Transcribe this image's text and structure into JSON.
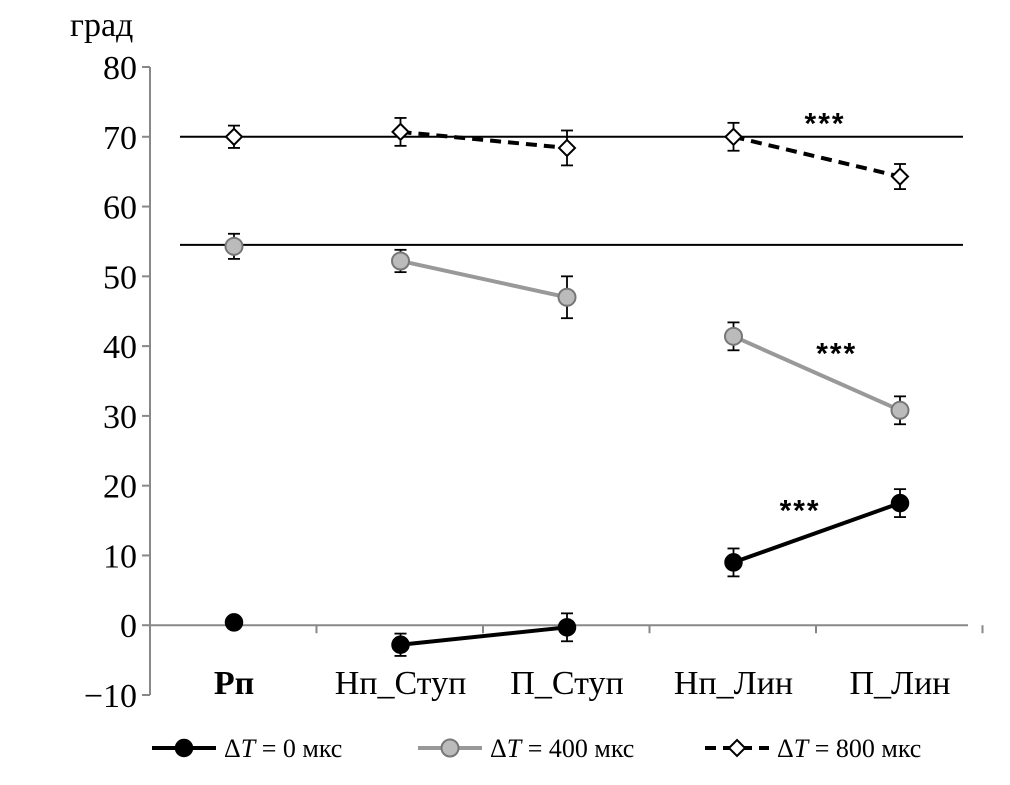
{
  "chart_data": {
    "type": "line",
    "ylabel": "град",
    "ylim": [
      -10,
      80
    ],
    "yticks": [
      -10,
      0,
      10,
      20,
      30,
      40,
      50,
      60,
      70,
      80
    ],
    "ytick_labels": [
      "−10",
      "0",
      "10",
      "20",
      "30",
      "40",
      "50",
      "60",
      "70",
      "80"
    ],
    "categories": [
      "Рп",
      "Нп_Ступ",
      "П_Ступ",
      "Нп_Лин",
      "П_Лин"
    ],
    "bold_categories": [
      0
    ],
    "reference_lines": [
      70,
      54.5
    ],
    "series": [
      {
        "name": "ΔT = 0 мкс",
        "legend_prefix": "Δ",
        "legend_var": "T",
        "legend_suffix": " = 0 мкс",
        "color": "#000000",
        "marker": "circle-filled",
        "marker_fill": "#000000",
        "line_style": "solid",
        "points": [
          {
            "x": 0,
            "y": 0.4,
            "err": 0
          },
          {
            "x": 1,
            "y": -2.8,
            "err": 1.6
          },
          {
            "x": 2,
            "y": -0.3,
            "err": 2.0
          },
          {
            "x": 3,
            "y": 9.0,
            "err": 2.0
          },
          {
            "x": 4,
            "y": 17.5,
            "err": 2.0
          }
        ],
        "segments": [
          [
            1,
            2
          ],
          [
            3,
            4
          ]
        ]
      },
      {
        "name": "ΔT = 400 мкс",
        "legend_prefix": "Δ",
        "legend_var": "T",
        "legend_suffix": " = 400 мкс",
        "color": "#999999",
        "marker": "circle-gray",
        "marker_fill": "#bbbbbb",
        "line_style": "solid",
        "points": [
          {
            "x": 0,
            "y": 54.3,
            "err": 1.8
          },
          {
            "x": 1,
            "y": 52.2,
            "err": 1.6
          },
          {
            "x": 2,
            "y": 47.0,
            "err": 3.0
          },
          {
            "x": 3,
            "y": 41.4,
            "err": 2.0
          },
          {
            "x": 4,
            "y": 30.8,
            "err": 2.0
          }
        ],
        "segments": [
          [
            1,
            2
          ],
          [
            3,
            4
          ]
        ]
      },
      {
        "name": "ΔT = 800 мкс",
        "legend_prefix": "Δ",
        "legend_var": "T",
        "legend_suffix": " = 800 мкс",
        "color": "#000000",
        "marker": "diamond-open",
        "marker_fill": "#ffffff",
        "line_style": "dashed",
        "points": [
          {
            "x": 0,
            "y": 70.0,
            "err": 1.6
          },
          {
            "x": 1,
            "y": 70.7,
            "err": 2.0
          },
          {
            "x": 2,
            "y": 68.4,
            "err": 2.5
          },
          {
            "x": 3,
            "y": 70.0,
            "err": 2.0
          },
          {
            "x": 4,
            "y": 64.3,
            "err": 1.8
          }
        ],
        "segments": [
          [
            1,
            2
          ],
          [
            3,
            4
          ]
        ]
      }
    ],
    "annotations": [
      {
        "text": "***",
        "x": 3.55,
        "y": 72.5
      },
      {
        "text": "***",
        "x": 3.62,
        "y": 39.5
      },
      {
        "text": "***",
        "x": 3.4,
        "y": 17.0
      }
    ],
    "legend_position": "bottom",
    "grid": false
  }
}
